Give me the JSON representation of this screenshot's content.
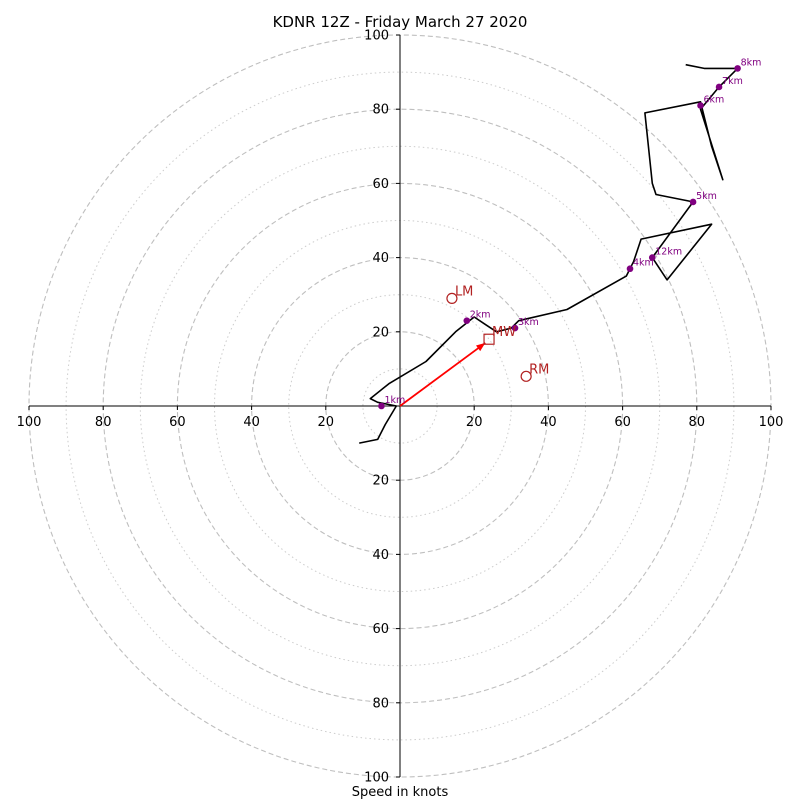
{
  "chart_data": {
    "type": "hodograph",
    "title": "KDNR 12Z - Friday March 27 2020",
    "xlabel": "Speed in knots",
    "ylabel": "",
    "xlim": [
      -100,
      100
    ],
    "ylim": [
      -100,
      100
    ],
    "rings_major": [
      20,
      40,
      60,
      80,
      100
    ],
    "rings_minor": [
      10,
      30,
      50,
      70,
      90
    ],
    "x_ticks": [
      {
        "value": -100,
        "label": "100"
      },
      {
        "value": -80,
        "label": "80"
      },
      {
        "value": -60,
        "label": "60"
      },
      {
        "value": -40,
        "label": "40"
      },
      {
        "value": -20,
        "label": "20"
      },
      {
        "value": 20,
        "label": "20"
      },
      {
        "value": 40,
        "label": "40"
      },
      {
        "value": 60,
        "label": "60"
      },
      {
        "value": 80,
        "label": "80"
      },
      {
        "value": 100,
        "label": "100"
      }
    ],
    "y_ticks": [
      {
        "value": 100,
        "label": "100"
      },
      {
        "value": 80,
        "label": "80"
      },
      {
        "value": 60,
        "label": "60"
      },
      {
        "value": 40,
        "label": "40"
      },
      {
        "value": 20,
        "label": "20"
      },
      {
        "value": -20,
        "label": "20"
      },
      {
        "value": -40,
        "label": "40"
      },
      {
        "value": -60,
        "label": "60"
      },
      {
        "value": -80,
        "label": "80"
      },
      {
        "value": -100,
        "label": "100"
      }
    ],
    "trace": [
      [
        -11,
        -10
      ],
      [
        -6,
        -9
      ],
      [
        -4,
        -5
      ],
      [
        -1,
        0
      ],
      [
        -6,
        1
      ],
      [
        -8,
        2
      ],
      [
        -3,
        6
      ],
      [
        7,
        12
      ],
      [
        15,
        20
      ],
      [
        20,
        24
      ],
      [
        23,
        22
      ],
      [
        26,
        20
      ],
      [
        30,
        21
      ],
      [
        32,
        23
      ],
      [
        45,
        26
      ],
      [
        61,
        35
      ],
      [
        63,
        39
      ],
      [
        65,
        45
      ],
      [
        84,
        49
      ],
      [
        72,
        34
      ],
      [
        68,
        40
      ],
      [
        79,
        55
      ],
      [
        69,
        57
      ],
      [
        68,
        60
      ],
      [
        66,
        79
      ],
      [
        81,
        82
      ],
      [
        84,
        70
      ],
      [
        87,
        61
      ],
      [
        81,
        80
      ],
      [
        86,
        86
      ],
      [
        91,
        91
      ],
      [
        82,
        91
      ],
      [
        77,
        92
      ]
    ],
    "height_markers": [
      {
        "label": "1km",
        "x": -5,
        "y": 0
      },
      {
        "label": "2km",
        "x": 18,
        "y": 23
      },
      {
        "label": "3km",
        "x": 31,
        "y": 21
      },
      {
        "label": "4km",
        "x": 62,
        "y": 37
      },
      {
        "label": "5km",
        "x": 79,
        "y": 55
      },
      {
        "label": "6km",
        "x": 81,
        "y": 81
      },
      {
        "label": "7km",
        "x": 86,
        "y": 86
      },
      {
        "label": "8km",
        "x": 91,
        "y": 91
      },
      {
        "label": "12km",
        "x": 68,
        "y": 40
      }
    ],
    "storm_motion": [
      {
        "label": "LM",
        "x": 14,
        "y": 29,
        "marker": "circle"
      },
      {
        "label": "MW",
        "x": 24,
        "y": 18,
        "marker": "square"
      },
      {
        "label": "RM",
        "x": 34,
        "y": 8,
        "marker": "circle"
      }
    ],
    "shear_vector": {
      "from": [
        0,
        0
      ],
      "to": [
        23,
        17
      ]
    },
    "colors": {
      "trace": "#000000",
      "markers": "#800080",
      "storm_motion": "#b22222",
      "shear_vector": "#ff0000",
      "rings": "#bfbfbf",
      "axes": "#000000"
    },
    "grid": true
  }
}
